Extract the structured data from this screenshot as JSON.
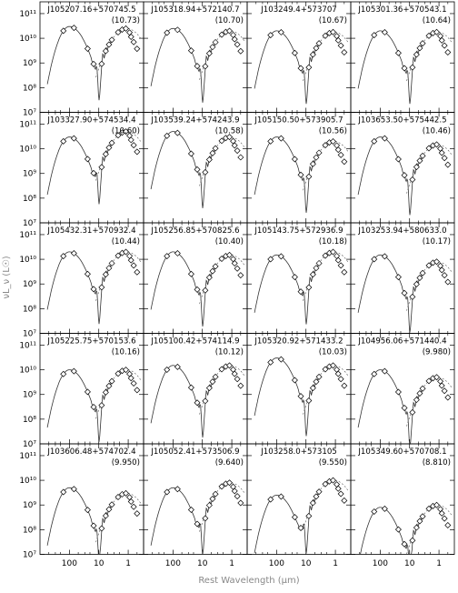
{
  "figure": {
    "ylabel": "νL_ν (L☉)",
    "xlabel": "Rest Wavelength (μm)"
  },
  "chart_data": {
    "type": "scatter",
    "layout": "5x4 grid of SED panels",
    "xaxis": {
      "label": "Rest Wavelength (μm)",
      "scale": "log",
      "reversed": true,
      "ticks": [
        100,
        10,
        1
      ],
      "tick_labels": [
        "100",
        "10",
        "1"
      ],
      "range": [
        1000,
        0.3
      ]
    },
    "yaxis": {
      "label": "νL_ν (L☉)",
      "scale": "log",
      "ticks": [
        10000000.0,
        100000000.0,
        1000000000.0,
        10000000000.0,
        100000000000.0
      ],
      "tick_labels": [
        "10⁷",
        "10⁸",
        "10⁹",
        "10¹⁰",
        "10¹¹"
      ],
      "range": [
        10000000.0,
        300000000000.0
      ]
    },
    "marker": "diamond",
    "panels": [
      {
        "name": "J105207.16+570745.5",
        "label": "(10.73)",
        "amp": 3.0,
        "opt": 2.5
      },
      {
        "name": "J105318.94+572140.7",
        "label": "(10.70)",
        "amp": 2.5,
        "opt": 2.0
      },
      {
        "name": "J103249.4+573707",
        "label": "(10.67)",
        "amp": 2.0,
        "opt": 1.8
      },
      {
        "name": "J105301.36+570543.1",
        "label": "(10.64)",
        "amp": 2.0,
        "opt": 1.8
      },
      {
        "name": "J103327.90+574534.4",
        "label": "(10.60)",
        "amp": 3.0,
        "opt": 5.0
      },
      {
        "name": "J103539.24+574243.9",
        "label": "(10.58)",
        "amp": 5.0,
        "opt": 3.0
      },
      {
        "name": "J105150.50+573905.7",
        "label": "(10.56)",
        "amp": 3.0,
        "opt": 2.0
      },
      {
        "name": "J103653.50+575442.5",
        "label": "(10.46)",
        "amp": 3.0,
        "opt": 1.5
      },
      {
        "name": "J105432.31+570932.4",
        "label": "(10.44)",
        "amp": 2.0,
        "opt": 2.0
      },
      {
        "name": "J105256.85+570825.6",
        "label": "(10.40)",
        "amp": 2.0,
        "opt": 1.5
      },
      {
        "name": "J105143.75+572936.9",
        "label": "(10.18)",
        "amp": 1.5,
        "opt": 2.0
      },
      {
        "name": "J103253.94+580633.0",
        "label": "(10.17)",
        "amp": 1.5,
        "opt": 0.8
      },
      {
        "name": "J105225.75+570153.6",
        "label": "(10.16)",
        "amp": 1.0,
        "opt": 1.0
      },
      {
        "name": "J105100.42+574114.9",
        "label": "(10.12)",
        "amp": 1.5,
        "opt": 1.5
      },
      {
        "name": "J105320.92+571433.2",
        "label": "(10.03)",
        "amp": 3.0,
        "opt": 1.5
      },
      {
        "name": "J104956.06+571440.4",
        "label": "(9.980)",
        "amp": 1.0,
        "opt": 0.5
      },
      {
        "name": "J103606.48+574702.4",
        "label": "(9.950)",
        "amp": 0.5,
        "opt": 0.3
      },
      {
        "name": "J105052.41+573506.9",
        "label": "(9.640)",
        "amp": 0.5,
        "opt": 0.8
      },
      {
        "name": "J103258.0+573105",
        "label": "(9.550)",
        "amp": 0.25,
        "opt": 1.0
      },
      {
        "name": "J105349.60+570708.1",
        "label": "(8.810)",
        "amp": 0.08,
        "opt": 0.1
      }
    ]
  }
}
